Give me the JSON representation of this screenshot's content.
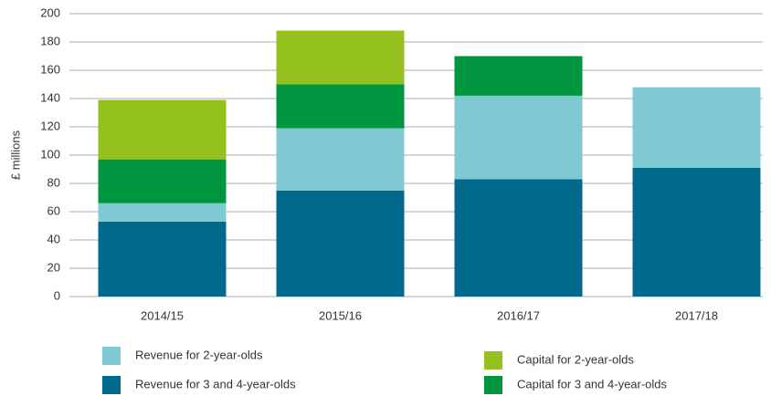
{
  "chart_data": {
    "type": "stacked_bar",
    "y_label": "£ millions",
    "categories": [
      "2014/15",
      "2015/16",
      "2016/17",
      "2017/18"
    ],
    "series": [
      {
        "name": "Revenue for 3 and 4-year-olds",
        "color": "#00698c",
        "values": [
          53,
          75,
          83,
          91
        ]
      },
      {
        "name": "Revenue for 2-year-olds",
        "color": "#7fcad2",
        "values": [
          13,
          44,
          59,
          57
        ]
      },
      {
        "name": "Capital for 3 and 4-year-olds",
        "color": "#009640",
        "values": [
          31,
          31,
          28,
          0
        ]
      },
      {
        "name": "Capital for 2-year-olds",
        "color": "#95c11f",
        "values": [
          42,
          38,
          0,
          0
        ]
      }
    ],
    "ylim": [
      0,
      200
    ],
    "yticks": [
      0,
      20,
      40,
      60,
      80,
      100,
      120,
      140,
      160,
      180,
      200
    ],
    "grid": true
  }
}
